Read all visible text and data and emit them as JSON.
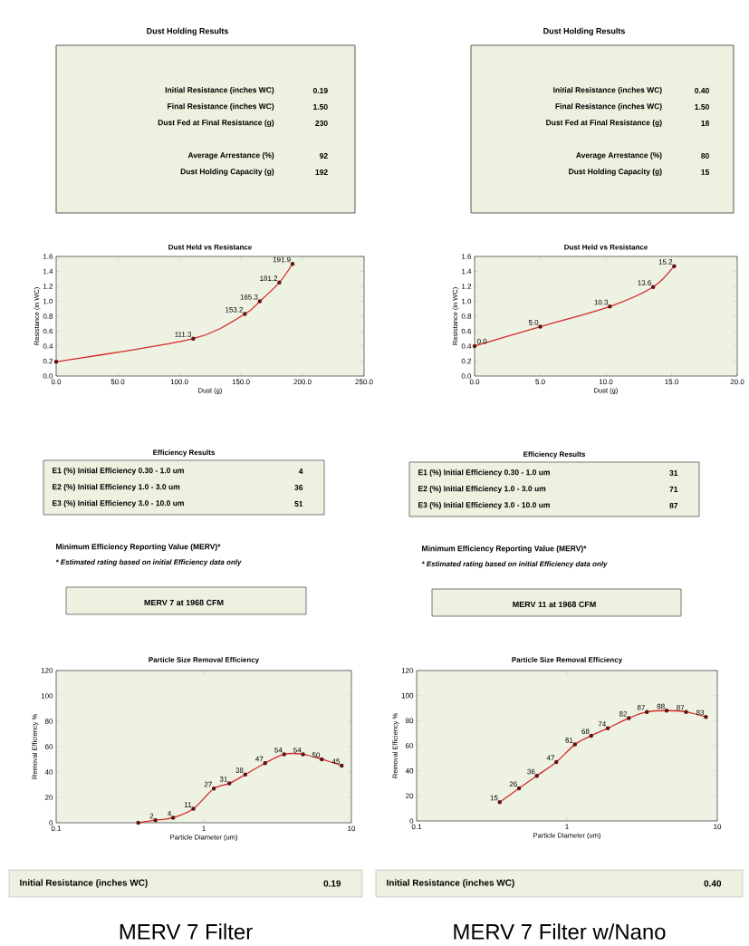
{
  "chart_data": [
    {
      "type": "other",
      "title": "Dust Holding Results",
      "annotations": [
        "Initial Resistance (inches WC)",
        "0.19",
        "Final Resistance (inches WC)",
        "1.50",
        "Dust Fed at Final Resistance (g)",
        "230",
        "Average Arrestance (%)",
        "92",
        "Dust Holding Capacity (g)",
        "192"
      ]
    },
    {
      "type": "other",
      "title": "Dust Holding Results",
      "annotations": [
        "Initial Resistance (inches WC)",
        "0.40",
        "Final Resistance (inches WC)",
        "1.50",
        "Dust Fed at Final Resistance (g)",
        "18",
        "Average Arrestance (%)",
        "80",
        "Dust Holding Capacity (g)",
        "15"
      ]
    },
    {
      "type": "line",
      "title": "Dust Held vs Resistance",
      "xlabel": "Dust (g)",
      "ylabel": "Resistance (in WC)",
      "marker": "circle",
      "x": [
        0,
        111.3,
        153.2,
        165.3,
        181.2,
        191.9
      ],
      "series": [
        {
          "color": "#d42a2a",
          "values": [
            0.19,
            0.5,
            0.83,
            1.0,
            1.25,
            1.5
          ]
        }
      ],
      "annotations": [
        {
          "text": "111.3",
          "x": 111.3,
          "y": 0.5
        },
        {
          "text": "153.2",
          "x": 153.2,
          "y": 0.83
        },
        {
          "text": "165.3",
          "x": 165.3,
          "y": 1.0
        },
        {
          "text": "181.2",
          "x": 181.2,
          "y": 1.25
        },
        {
          "text": "191.9",
          "x": 191.9,
          "y": 1.5
        }
      ],
      "xlim": [
        0,
        250
      ],
      "ylim": [
        0,
        1.6
      ],
      "xticks": [
        {
          "value": 0,
          "label": "0.0"
        },
        {
          "value": 50,
          "label": "50.0"
        },
        {
          "value": 100,
          "label": "100.0"
        },
        {
          "value": 150,
          "label": "150.0"
        },
        {
          "value": 200,
          "label": "200.0"
        },
        {
          "value": 250,
          "label": "250.0"
        }
      ],
      "yticks": [
        {
          "value": 0,
          "label": "0.0"
        },
        {
          "value": 0.2,
          "label": "0.2"
        },
        {
          "value": 0.4,
          "label": "0.4"
        },
        {
          "value": 0.6,
          "label": "0.6"
        },
        {
          "value": 0.8,
          "label": "0.8"
        },
        {
          "value": 1.0,
          "label": "1.0"
        },
        {
          "value": 1.2,
          "label": "1.2"
        },
        {
          "value": 1.4,
          "label": "1.4"
        },
        {
          "value": 1.6,
          "label": "1.6"
        }
      ]
    },
    {
      "type": "line",
      "title": "Dust Held vs Resistance",
      "xlabel": "Dust (g)",
      "ylabel": "Resistance (in WC)",
      "marker": "circle",
      "x": [
        0,
        5.0,
        10.3,
        13.6,
        15.2
      ],
      "series": [
        {
          "color": "#d42a2a",
          "values": [
            0.4,
            0.66,
            0.93,
            1.19,
            1.47
          ]
        }
      ],
      "annotations": [
        {
          "text": "0.0",
          "x": 0,
          "y": 0.4
        },
        {
          "text": "5.0",
          "x": 5.0,
          "y": 0.66
        },
        {
          "text": "10.3",
          "x": 10.3,
          "y": 0.93
        },
        {
          "text": "13.6",
          "x": 13.6,
          "y": 1.19
        },
        {
          "text": "15.2",
          "x": 15.2,
          "y": 1.47
        }
      ],
      "xlim": [
        0,
        20
      ],
      "ylim": [
        0,
        1.6
      ],
      "xticks": [
        {
          "value": 0,
          "label": "0.0"
        },
        {
          "value": 5,
          "label": "5.0"
        },
        {
          "value": 10,
          "label": "10.0"
        },
        {
          "value": 15,
          "label": "15.0"
        },
        {
          "value": 20,
          "label": "20.0"
        }
      ],
      "yticks": [
        {
          "value": 0,
          "label": "0.0"
        },
        {
          "value": 0.2,
          "label": "0.2"
        },
        {
          "value": 0.4,
          "label": "0.4"
        },
        {
          "value": 0.6,
          "label": "0.6"
        },
        {
          "value": 0.8,
          "label": "0.8"
        },
        {
          "value": 1.0,
          "label": "1.0"
        },
        {
          "value": 1.2,
          "label": "1.2"
        },
        {
          "value": 1.4,
          "label": "1.4"
        },
        {
          "value": 1.6,
          "label": "1.6"
        }
      ]
    },
    {
      "type": "other",
      "title": "Efficiency Results",
      "annotations": [
        "E1 (%) Initial Efficiency 0.30 - 1.0 um",
        "4",
        "E2 (%) Initial Efficiency 1.0 - 3.0 um",
        "36",
        "E3 (%) Initial Efficiency 3.0 - 10.0 um",
        "51",
        "Minimum Efficiency Reporting Value (MERV)*",
        "* Estimated rating based on initial Efficiency data only",
        "MERV 7 at 1968 CFM"
      ]
    },
    {
      "type": "other",
      "title": "Efficiency Results",
      "annotations": [
        "E1 (%) Initial Efficiency 0.30 - 1.0 um",
        "31",
        "E2 (%) Initial Efficiency 1.0 - 3.0 um",
        "71",
        "E3 (%) Initial Efficiency 3.0 - 10.0 um",
        "87",
        "Minimum Efficiency Reporting Value (MERV)*",
        "* Estimated rating based on initial Efficiency data only",
        "MERV 11 at 1968 CFM"
      ]
    },
    {
      "type": "line",
      "title": "Particle Size Removal Efficiency",
      "xlabel": "Particle Diameter (um)",
      "ylabel": "Removal Efficiency %",
      "marker": "circle",
      "log": "x",
      "x": [
        0.36,
        0.47,
        0.62,
        0.85,
        1.17,
        1.49,
        1.91,
        2.6,
        3.5,
        4.7,
        6.3,
        8.6
      ],
      "series": [
        {
          "color": "#d42a2a",
          "values": [
            0,
            2,
            4,
            11,
            27,
            31,
            38,
            47,
            54,
            54,
            50,
            45
          ],
          "value_labels": [
            null,
            "2",
            "4",
            "11",
            "27",
            "31",
            "38",
            "47",
            "54",
            "54",
            "50",
            "45"
          ]
        }
      ],
      "xlim": [
        0.1,
        10
      ],
      "ylim": [
        0,
        120
      ],
      "xticks": [
        0.1,
        1,
        10
      ],
      "yticks": [
        0,
        20,
        40,
        60,
        80,
        100,
        120
      ]
    },
    {
      "type": "line",
      "title": "Particle Size Removal Efficiency",
      "xlabel": "Particle Diameter (um)",
      "ylabel": "Removal Efficiency %",
      "marker": "circle",
      "log": "x",
      "x": [
        0.357,
        0.48,
        0.63,
        0.85,
        1.13,
        1.45,
        1.87,
        2.58,
        3.4,
        4.6,
        6.2,
        8.4
      ],
      "series": [
        {
          "color": "#d42a2a",
          "values": [
            15,
            26,
            36,
            47,
            61,
            68,
            74,
            82,
            87,
            88,
            87,
            83
          ],
          "value_labels": [
            "15",
            "26",
            "36",
            "47",
            "61",
            "68",
            "74",
            "82",
            "87",
            "88",
            "87",
            "83"
          ]
        }
      ],
      "xlim": [
        0.1,
        10
      ],
      "ylim": [
        0,
        120
      ],
      "xticks": [
        0.1,
        1,
        10
      ],
      "yticks": [
        0,
        20,
        40,
        60,
        80,
        100,
        120
      ]
    },
    {
      "type": "other",
      "annotations": [
        "Initial Resistance (inches WC)",
        "0.19",
        "MERV 7 Filter"
      ]
    },
    {
      "type": "other",
      "annotations": [
        "Initial Resistance (inches WC)",
        "0.40",
        "MERV 7 Filter w/Nano"
      ]
    }
  ]
}
